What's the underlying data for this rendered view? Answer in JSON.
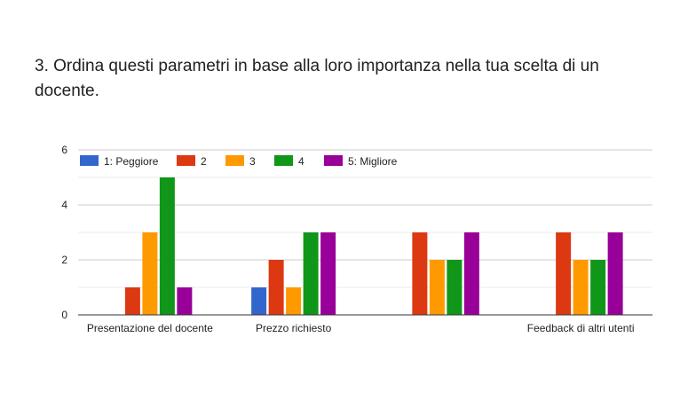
{
  "question": {
    "title": "3. Ordina questi parametri in base alla loro importanza nella tua scelta di un docente."
  },
  "chart_data": {
    "type": "bar",
    "categories": [
      "Presentazione del docente",
      "Prezzo richiesto",
      "",
      "Feedback di altri utenti"
    ],
    "series": [
      {
        "name": "1: Peggiore",
        "color": "#3366cc",
        "values": [
          0,
          1,
          0,
          0
        ]
      },
      {
        "name": "2",
        "color": "#dc3912",
        "values": [
          1,
          2,
          3,
          3
        ]
      },
      {
        "name": "3",
        "color": "#ff9900",
        "values": [
          3,
          1,
          2,
          2
        ]
      },
      {
        "name": "4",
        "color": "#109618",
        "values": [
          5,
          3,
          2,
          2
        ]
      },
      {
        "name": "5: Migliore",
        "color": "#990099",
        "values": [
          1,
          3,
          3,
          3
        ]
      }
    ],
    "ylim": [
      0,
      6
    ],
    "yticks": [
      0,
      2,
      4,
      6
    ],
    "grid": true,
    "legend_position": "top-left",
    "title": "",
    "xlabel": "",
    "ylabel": ""
  }
}
